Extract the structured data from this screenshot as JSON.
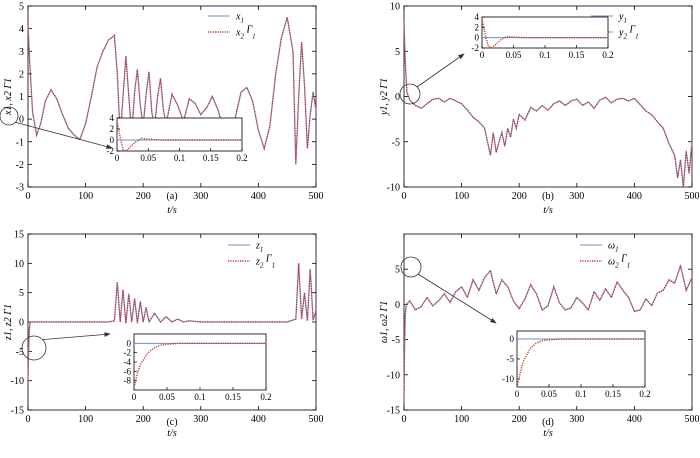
{
  "colors": {
    "series1": "#6f8fd0",
    "series2": "#c0392b",
    "axes": "#000000",
    "callout": "#333333"
  },
  "chart_data": [
    {
      "type": "line",
      "panel_label": "(a)",
      "xlabel": "t/s",
      "ylabel": "x1, x2 Γ1",
      "xlim": [
        0,
        500
      ],
      "ylim": [
        -3,
        5
      ],
      "xticks": [
        0,
        100,
        200,
        300,
        400,
        500
      ],
      "yticks": [
        -3,
        -2,
        -1,
        0,
        1,
        2,
        3,
        4,
        5
      ],
      "legend": {
        "position": "top-right",
        "entries": [
          {
            "base": "x",
            "sub": "1",
            "extra": "",
            "extra_sub": ""
          },
          {
            "base": "x",
            "sub": "2",
            "extra": " Γ",
            "extra_sub": "1"
          }
        ]
      },
      "series": [
        {
          "x": [
            0,
            3,
            8,
            15,
            22,
            30,
            40,
            50,
            60,
            70,
            80,
            90,
            100,
            110,
            120,
            130,
            140,
            150,
            155,
            160,
            165,
            170,
            175,
            180,
            185,
            190,
            195,
            200,
            205,
            210,
            215,
            220,
            225,
            230,
            235,
            240,
            250,
            260,
            270,
            280,
            290,
            300,
            310,
            320,
            330,
            340,
            350,
            360,
            370,
            380,
            390,
            400,
            410,
            420,
            430,
            440,
            450,
            460,
            465,
            470,
            475,
            480,
            485,
            490,
            495,
            500
          ],
          "y": [
            4.2,
            2.5,
            0.3,
            -0.7,
            -0.2,
            0.8,
            1.3,
            0.9,
            0.2,
            -0.4,
            -0.7,
            -0.9,
            -0.2,
            1.0,
            2.3,
            3.0,
            3.5,
            3.7,
            2.0,
            -0.8,
            1.0,
            2.8,
            1.0,
            -0.7,
            1.2,
            2.2,
            0.6,
            -0.3,
            1.1,
            2.1,
            0.3,
            -0.3,
            1.0,
            1.8,
            0.4,
            -0.2,
            1.1,
            0.6,
            -0.1,
            0.9,
            0.7,
            0.2,
            0.5,
            1.0,
            0.4,
            -0.5,
            -0.8,
            0.1,
            1.2,
            1.4,
            0.8,
            -0.5,
            -1.3,
            -0.3,
            2.0,
            3.6,
            4.5,
            3.0,
            -2.0,
            1.0,
            3.4,
            1.5,
            -1.3,
            0.2,
            1.2,
            0.4
          ]
        }
      ],
      "inset": {
        "xlim": [
          0,
          0.2
        ],
        "ylim": [
          -2,
          4
        ],
        "xticks": [
          0,
          0.05,
          0.1,
          0.15,
          0.2
        ],
        "yticks": [
          -2,
          0,
          2,
          4
        ],
        "x": [
          0,
          0.005,
          0.01,
          0.015,
          0.02,
          0.03,
          0.04,
          0.05,
          0.07,
          0.1,
          0.15,
          0.2
        ],
        "y": [
          3.5,
          0.5,
          -1.8,
          -2.0,
          -1.4,
          -0.3,
          0.3,
          0.15,
          0,
          0,
          0,
          0
        ]
      }
    },
    {
      "type": "line",
      "panel_label": "(b)",
      "xlabel": "t/s",
      "ylabel": "y1, y2 Γ1",
      "xlim": [
        0,
        500
      ],
      "ylim": [
        -10,
        10
      ],
      "xticks": [
        0,
        100,
        200,
        300,
        400,
        500
      ],
      "yticks": [
        -10,
        -5,
        0,
        5,
        10
      ],
      "legend": {
        "position": "top-right",
        "entries": [
          {
            "base": "y",
            "sub": "1",
            "extra": "",
            "extra_sub": ""
          },
          {
            "base": "y",
            "sub": "2",
            "extra": " Γ",
            "extra_sub": "1"
          }
        ]
      },
      "series": [
        {
          "x": [
            0,
            2,
            5,
            10,
            20,
            30,
            40,
            50,
            60,
            70,
            80,
            90,
            100,
            110,
            120,
            130,
            140,
            150,
            155,
            160,
            165,
            170,
            175,
            180,
            185,
            190,
            195,
            200,
            210,
            220,
            230,
            240,
            250,
            260,
            270,
            280,
            290,
            300,
            310,
            320,
            330,
            340,
            350,
            360,
            370,
            380,
            390,
            400,
            410,
            420,
            430,
            440,
            450,
            460,
            470,
            475,
            480,
            485,
            490,
            495,
            500
          ],
          "y": [
            8.5,
            4.0,
            0.5,
            -0.4,
            -1.0,
            -1.3,
            -0.8,
            -0.3,
            -0.2,
            -0.6,
            -0.2,
            -0.5,
            -0.8,
            -1.5,
            -2.3,
            -2.8,
            -3.5,
            -6.5,
            -4.0,
            -6.2,
            -5.0,
            -4.0,
            -5.5,
            -3.5,
            -4.5,
            -2.5,
            -3.5,
            -2.0,
            -2.6,
            -1.2,
            -1.6,
            -1.0,
            -1.5,
            -0.8,
            -0.5,
            -1.0,
            -0.5,
            -0.3,
            -1.0,
            -0.6,
            -1.3,
            -0.4,
            -0.1,
            -0.7,
            -0.3,
            -0.2,
            -0.5,
            -0.2,
            -0.9,
            -1.6,
            -2.0,
            -2.8,
            -3.5,
            -5.2,
            -6.5,
            -9.0,
            -7.0,
            -10.0,
            -6.0,
            -8.5,
            -5.0
          ]
        }
      ],
      "inset": {
        "xlim": [
          0,
          0.2
        ],
        "ylim": [
          -2,
          4
        ],
        "xticks": [
          0,
          0.05,
          0.1,
          0.15,
          0.2
        ],
        "yticks": [
          -2,
          0,
          2,
          4
        ],
        "x": [
          0,
          0.005,
          0.01,
          0.015,
          0.02,
          0.03,
          0.04,
          0.05,
          0.07,
          0.1,
          0.15,
          0.2
        ],
        "y": [
          3.6,
          0.6,
          -1.6,
          -2.0,
          -1.5,
          -0.4,
          0.2,
          0.1,
          0,
          0,
          0,
          0
        ]
      }
    },
    {
      "type": "line",
      "panel_label": "(c)",
      "xlabel": "t/s",
      "ylabel": "z1, z2 Γ1",
      "xlim": [
        0,
        500
      ],
      "ylim": [
        -15,
        15
      ],
      "xticks": [
        0,
        100,
        200,
        300,
        400,
        500
      ],
      "yticks": [
        -15,
        -10,
        -5,
        0,
        5,
        10,
        15
      ],
      "legend": {
        "position": "top-right",
        "entries": [
          {
            "base": "z",
            "sub": "1",
            "extra": "",
            "extra_sub": ""
          },
          {
            "base": "z",
            "sub": "2",
            "extra": " Γ",
            "extra_sub": "1"
          }
        ]
      },
      "series": [
        {
          "x": [
            0,
            1,
            2,
            4,
            8,
            20,
            50,
            100,
            140,
            150,
            155,
            160,
            165,
            170,
            175,
            180,
            185,
            190,
            195,
            200,
            205,
            210,
            220,
            230,
            240,
            250,
            260,
            270,
            280,
            300,
            350,
            400,
            450,
            465,
            470,
            475,
            480,
            485,
            490,
            495,
            500
          ],
          "y": [
            -10.0,
            -5.0,
            -1.5,
            0.0,
            0.0,
            0.0,
            0.0,
            0.0,
            0.0,
            0.2,
            6.8,
            0.0,
            5.5,
            -0.2,
            4.8,
            0.0,
            4.0,
            -0.2,
            3.5,
            0.0,
            2.5,
            0.0,
            1.5,
            0.0,
            0.9,
            0.0,
            0.5,
            0.0,
            0.2,
            0.0,
            0.0,
            0.0,
            0.0,
            0.5,
            10.0,
            0.5,
            5.0,
            0.2,
            9.0,
            0.3,
            2.0
          ]
        }
      ],
      "inset": {
        "xlim": [
          0,
          0.2
        ],
        "ylim": [
          -10,
          2
        ],
        "xticks": [
          0,
          0.05,
          0.1,
          0.15,
          0.2
        ],
        "yticks": [
          -8,
          -6,
          -4,
          -2,
          0
        ],
        "x": [
          0,
          0.005,
          0.01,
          0.02,
          0.03,
          0.04,
          0.05,
          0.07,
          0.1,
          0.15,
          0.2
        ],
        "y": [
          -9.5,
          -6.5,
          -4.5,
          -2.2,
          -1.0,
          -0.4,
          -0.2,
          0,
          0,
          0,
          0
        ]
      }
    },
    {
      "type": "line",
      "panel_label": "(d)",
      "xlabel": "t/s",
      "ylabel": "ω1, ω2 Γ1",
      "xlim": [
        0,
        500
      ],
      "ylim": [
        -15,
        10
      ],
      "xticks": [
        0,
        100,
        200,
        300,
        400,
        500
      ],
      "yticks": [
        -15,
        -10,
        -5,
        0,
        5
      ],
      "legend": {
        "position": "top-right",
        "entries": [
          {
            "base": "ω",
            "sub": "1",
            "extra": "",
            "extra_sub": ""
          },
          {
            "base": "ω",
            "sub": "2",
            "extra": " Γ",
            "extra_sub": "1"
          }
        ]
      },
      "series": [
        {
          "x": [
            0,
            1,
            2,
            4,
            10,
            20,
            30,
            40,
            50,
            60,
            70,
            80,
            90,
            100,
            110,
            120,
            130,
            140,
            150,
            160,
            170,
            180,
            190,
            200,
            210,
            220,
            230,
            240,
            250,
            260,
            270,
            280,
            290,
            300,
            310,
            320,
            330,
            340,
            350,
            360,
            370,
            380,
            390,
            400,
            410,
            420,
            430,
            440,
            450,
            460,
            470,
            480,
            490,
            500
          ],
          "y": [
            -14.0,
            -6.0,
            -1.5,
            0.0,
            0.5,
            -0.8,
            -0.3,
            1.0,
            -0.2,
            0.5,
            1.5,
            0.3,
            1.8,
            2.5,
            1.0,
            3.5,
            2.0,
            3.8,
            4.8,
            1.5,
            3.5,
            2.5,
            0.5,
            -0.6,
            0.8,
            2.8,
            1.5,
            -0.8,
            -0.2,
            2.5,
            0.2,
            -0.8,
            -0.5,
            1.0,
            0.2,
            -0.8,
            1.8,
            0.6,
            2.2,
            1.0,
            3.2,
            2.0,
            1.0,
            -1.0,
            -0.8,
            0.8,
            -0.2,
            1.6,
            2.0,
            3.5,
            3.0,
            5.5,
            2.0,
            3.8
          ]
        }
      ],
      "inset": {
        "xlim": [
          0,
          0.2
        ],
        "ylim": [
          -12,
          2
        ],
        "xticks": [
          0,
          0.05,
          0.1,
          0.15,
          0.2
        ],
        "yticks": [
          -10,
          -5,
          0
        ],
        "x": [
          0,
          0.005,
          0.01,
          0.02,
          0.03,
          0.04,
          0.05,
          0.07,
          0.1,
          0.15,
          0.2
        ],
        "y": [
          -12.0,
          -8.5,
          -5.5,
          -2.5,
          -1.0,
          -0.4,
          -0.2,
          0,
          0,
          0,
          0
        ]
      }
    }
  ]
}
